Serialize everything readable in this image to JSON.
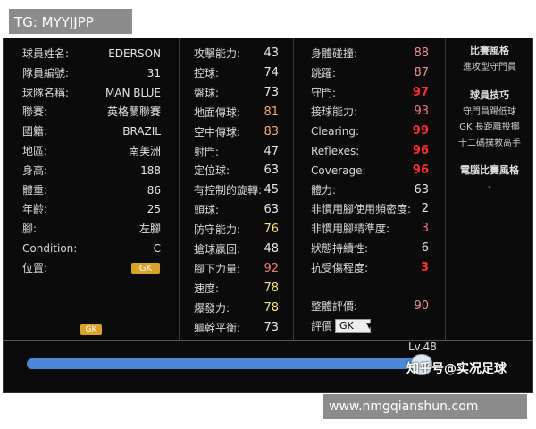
{
  "header": {
    "tag": "TG: MYYJJPP"
  },
  "profile": [
    {
      "label": "球員姓名:",
      "value": "EDERSON"
    },
    {
      "label": "隊員編號:",
      "value": 31
    },
    {
      "label": "球隊名稱:",
      "value": "MAN BLUE"
    },
    {
      "label": "聯賽:",
      "value": "英格蘭聯賽"
    },
    {
      "label": "國籍:",
      "value": "BRAZIL"
    },
    {
      "label": "地區:",
      "value": "南美洲"
    },
    {
      "label": "身高:",
      "value": 188
    },
    {
      "label": "體重:",
      "value": 86
    },
    {
      "label": "年齡:",
      "value": 25
    },
    {
      "label": "腳:",
      "value": "左腳"
    },
    {
      "label": "Condition:",
      "value": "C"
    },
    {
      "label": "位置:",
      "badge": "GK"
    }
  ],
  "position_badge": "GK",
  "attributes_1": [
    {
      "label": "攻擊能力:",
      "value": 43,
      "color": "#e6e6e6"
    },
    {
      "label": "控球:",
      "value": 74,
      "color": "#e6e6e6"
    },
    {
      "label": "盤球:",
      "value": 73,
      "color": "#e6e6e6"
    },
    {
      "label": "地面傳球:",
      "value": 81,
      "color": "#f2a868"
    },
    {
      "label": "空中傳球:",
      "value": 83,
      "color": "#f2a868"
    },
    {
      "label": "射門:",
      "value": 47,
      "color": "#e6e6e6"
    },
    {
      "label": "定位球:",
      "value": 63,
      "color": "#e6e6e6"
    },
    {
      "label": "有控制的旋轉:",
      "value": 45,
      "color": "#e6e6e6"
    },
    {
      "label": "頭球:",
      "value": 63,
      "color": "#e6e6e6"
    },
    {
      "label": "防守能力:",
      "value": 76,
      "color": "#f2e27a"
    },
    {
      "label": "搶球贏回:",
      "value": 48,
      "color": "#e6e6e6"
    },
    {
      "label": "腳下力量:",
      "value": 92,
      "color": "#f07a7a"
    },
    {
      "label": "速度:",
      "value": 78,
      "color": "#f2e27a"
    },
    {
      "label": "爆發力:",
      "value": 78,
      "color": "#f2e27a"
    },
    {
      "label": "軀幹平衡:",
      "value": 73,
      "color": "#e6e6e6"
    }
  ],
  "attributes_2": [
    {
      "label": "身體碰撞:",
      "value": 88,
      "color": "#f09090"
    },
    {
      "label": "跳躍:",
      "value": 87,
      "color": "#f09090"
    },
    {
      "label": "守門:",
      "value": 97,
      "color": "#ff3030"
    },
    {
      "label": "接球能力:",
      "value": 93,
      "color": "#f07a7a"
    },
    {
      "label": "Clearing:",
      "value": 99,
      "color": "#ff3030"
    },
    {
      "label": "Reflexes:",
      "value": 96,
      "color": "#ff3030"
    },
    {
      "label": "Coverage:",
      "value": 96,
      "color": "#ff3030"
    },
    {
      "label": "體力:",
      "value": 63,
      "color": "#e6e6e6"
    },
    {
      "label": "非慣用腳使用頻密度:",
      "value": 2,
      "color": "#e6e6e6"
    },
    {
      "label": "非慣用腳精準度:",
      "value": 3,
      "color": "#f07a7a"
    },
    {
      "label": "狀態持續性:",
      "value": 6,
      "color": "#e6e6e6"
    },
    {
      "label": "抗受傷程度:",
      "value": 3,
      "color": "#ff3030"
    }
  ],
  "overall": {
    "label": "整體評價:",
    "value": 90,
    "color": "#f09090"
  },
  "rating": {
    "label": "評價",
    "select": "GK"
  },
  "side": [
    {
      "title": "比賽風格",
      "items": [
        "進攻型守門員"
      ]
    },
    {
      "title": "球員技巧",
      "items": [
        "守門員踢低球",
        "GK 長距離投擲",
        "十二碼撲救高手"
      ]
    },
    {
      "title": "電腦比賽風格",
      "items": [
        "-"
      ]
    }
  ],
  "level": "Lv.48",
  "footer": {
    "watermark": "知乎号@实况足球",
    "site": "www.nmgqianshun.com"
  }
}
